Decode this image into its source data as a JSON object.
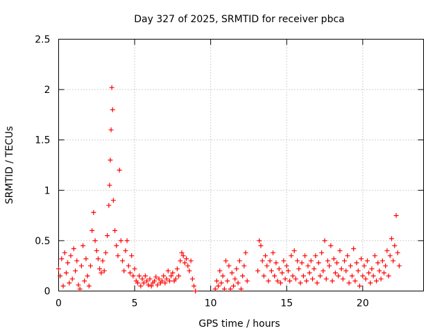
{
  "chart_data": {
    "type": "scatter",
    "title": "Day 327 of 2025, SRMTID for receiver pbca",
    "xlabel": "GPS time / hours",
    "ylabel": "SRMTID / TECUs",
    "xlim": [
      0,
      24
    ],
    "ylim": [
      0,
      2.5
    ],
    "x_ticks": [
      "0",
      "5",
      "10",
      "15",
      "20"
    ],
    "y_ticks": [
      "0",
      "0.5",
      "1",
      "1.5",
      "2",
      "2.5"
    ],
    "grid": true,
    "marker": "plus",
    "color": "#ff0000",
    "series": [
      {
        "name": "SRMTID",
        "x": [
          0.0,
          0.1,
          0.2,
          0.3,
          0.4,
          0.5,
          0.6,
          0.7,
          0.8,
          0.9,
          1.0,
          1.1,
          1.2,
          1.3,
          1.4,
          1.5,
          1.6,
          1.7,
          1.8,
          1.9,
          2.0,
          2.1,
          2.2,
          2.3,
          2.4,
          2.5,
          2.6,
          2.7,
          2.8,
          2.9,
          3.0,
          3.1,
          3.2,
          3.3,
          3.35,
          3.4,
          3.45,
          3.5,
          3.55,
          3.6,
          3.7,
          3.8,
          3.9,
          4.0,
          4.1,
          4.2,
          4.3,
          4.4,
          4.5,
          4.6,
          4.7,
          4.8,
          4.9,
          5.0,
          5.1,
          5.2,
          5.3,
          5.4,
          5.5,
          5.6,
          5.7,
          5.8,
          5.9,
          6.0,
          6.1,
          6.2,
          6.3,
          6.4,
          6.5,
          6.6,
          6.7,
          6.8,
          6.9,
          7.0,
          7.1,
          7.2,
          7.3,
          7.4,
          7.5,
          7.6,
          7.7,
          7.8,
          7.9,
          8.0,
          8.1,
          8.2,
          8.3,
          8.4,
          8.5,
          8.6,
          8.7,
          8.8,
          8.9,
          9.0,
          10.3,
          10.4,
          10.5,
          10.6,
          10.7,
          10.8,
          10.9,
          11.0,
          11.1,
          11.2,
          11.3,
          11.4,
          11.5,
          11.6,
          11.7,
          11.8,
          11.9,
          12.0,
          12.1,
          12.2,
          12.3,
          12.4,
          13.1,
          13.2,
          13.3,
          13.4,
          13.5,
          13.6,
          13.7,
          13.8,
          13.9,
          14.0,
          14.1,
          14.2,
          14.3,
          14.4,
          14.5,
          14.6,
          14.7,
          14.8,
          14.9,
          15.0,
          15.1,
          15.2,
          15.3,
          15.4,
          15.5,
          15.6,
          15.7,
          15.8,
          15.9,
          16.0,
          16.1,
          16.2,
          16.3,
          16.4,
          16.5,
          16.6,
          16.7,
          16.8,
          16.9,
          17.0,
          17.1,
          17.2,
          17.3,
          17.4,
          17.5,
          17.6,
          17.7,
          17.8,
          17.9,
          18.0,
          18.1,
          18.2,
          18.3,
          18.4,
          18.5,
          18.6,
          18.7,
          18.8,
          18.9,
          19.0,
          19.1,
          19.2,
          19.3,
          19.4,
          19.5,
          19.6,
          19.7,
          19.8,
          19.9,
          20.0,
          20.1,
          20.2,
          20.3,
          20.4,
          20.5,
          20.6,
          20.7,
          20.8,
          20.9,
          21.0,
          21.1,
          21.2,
          21.3,
          21.4,
          21.5,
          21.6,
          21.7,
          21.8,
          21.9,
          22.0,
          22.1,
          22.2,
          22.3,
          22.4
        ],
        "y": [
          0.22,
          0.15,
          0.32,
          0.05,
          0.38,
          0.18,
          0.28,
          0.08,
          0.35,
          0.12,
          0.42,
          0.2,
          0.3,
          0.06,
          0.02,
          0.25,
          0.45,
          0.1,
          0.32,
          0.15,
          0.05,
          0.25,
          0.6,
          0.78,
          0.5,
          0.4,
          0.32,
          0.22,
          0.18,
          0.3,
          0.2,
          0.38,
          0.55,
          0.85,
          1.05,
          1.3,
          1.6,
          2.02,
          1.8,
          0.9,
          0.6,
          0.45,
          0.35,
          1.2,
          0.5,
          0.3,
          0.2,
          0.4,
          0.5,
          0.25,
          0.18,
          0.35,
          0.15,
          0.22,
          0.1,
          0.08,
          0.15,
          0.05,
          0.12,
          0.08,
          0.15,
          0.1,
          0.06,
          0.12,
          0.05,
          0.08,
          0.1,
          0.14,
          0.06,
          0.12,
          0.08,
          0.1,
          0.15,
          0.08,
          0.12,
          0.2,
          0.1,
          0.15,
          0.18,
          0.1,
          0.12,
          0.22,
          0.15,
          0.3,
          0.38,
          0.35,
          0.28,
          0.32,
          0.25,
          0.2,
          0.3,
          0.12,
          0.05,
          0.0,
          0.02,
          0.1,
          0.05,
          0.2,
          0.08,
          0.15,
          0.02,
          0.3,
          0.1,
          0.25,
          0.02,
          0.18,
          0.05,
          0.12,
          0.22,
          0.08,
          0.3,
          0.02,
          0.15,
          0.25,
          0.38,
          0.1,
          0.2,
          0.5,
          0.45,
          0.3,
          0.15,
          0.35,
          0.25,
          0.1,
          0.3,
          0.2,
          0.38,
          0.15,
          0.28,
          0.1,
          0.22,
          0.08,
          0.18,
          0.3,
          0.12,
          0.25,
          0.2,
          0.1,
          0.35,
          0.15,
          0.4,
          0.12,
          0.3,
          0.22,
          0.08,
          0.28,
          0.15,
          0.35,
          0.1,
          0.25,
          0.18,
          0.3,
          0.12,
          0.22,
          0.35,
          0.08,
          0.28,
          0.15,
          0.38,
          0.2,
          0.5,
          0.12,
          0.3,
          0.25,
          0.45,
          0.1,
          0.32,
          0.18,
          0.28,
          0.15,
          0.4,
          0.22,
          0.12,
          0.3,
          0.2,
          0.35,
          0.08,
          0.25,
          0.15,
          0.42,
          0.1,
          0.28,
          0.2,
          0.05,
          0.32,
          0.15,
          0.25,
          0.12,
          0.3,
          0.18,
          0.08,
          0.22,
          0.15,
          0.35,
          0.1,
          0.28,
          0.2,
          0.12,
          0.3,
          0.18,
          0.25,
          0.4,
          0.15,
          0.35,
          0.52,
          0.3,
          0.45,
          0.75,
          0.38,
          0.25
        ]
      }
    ]
  }
}
